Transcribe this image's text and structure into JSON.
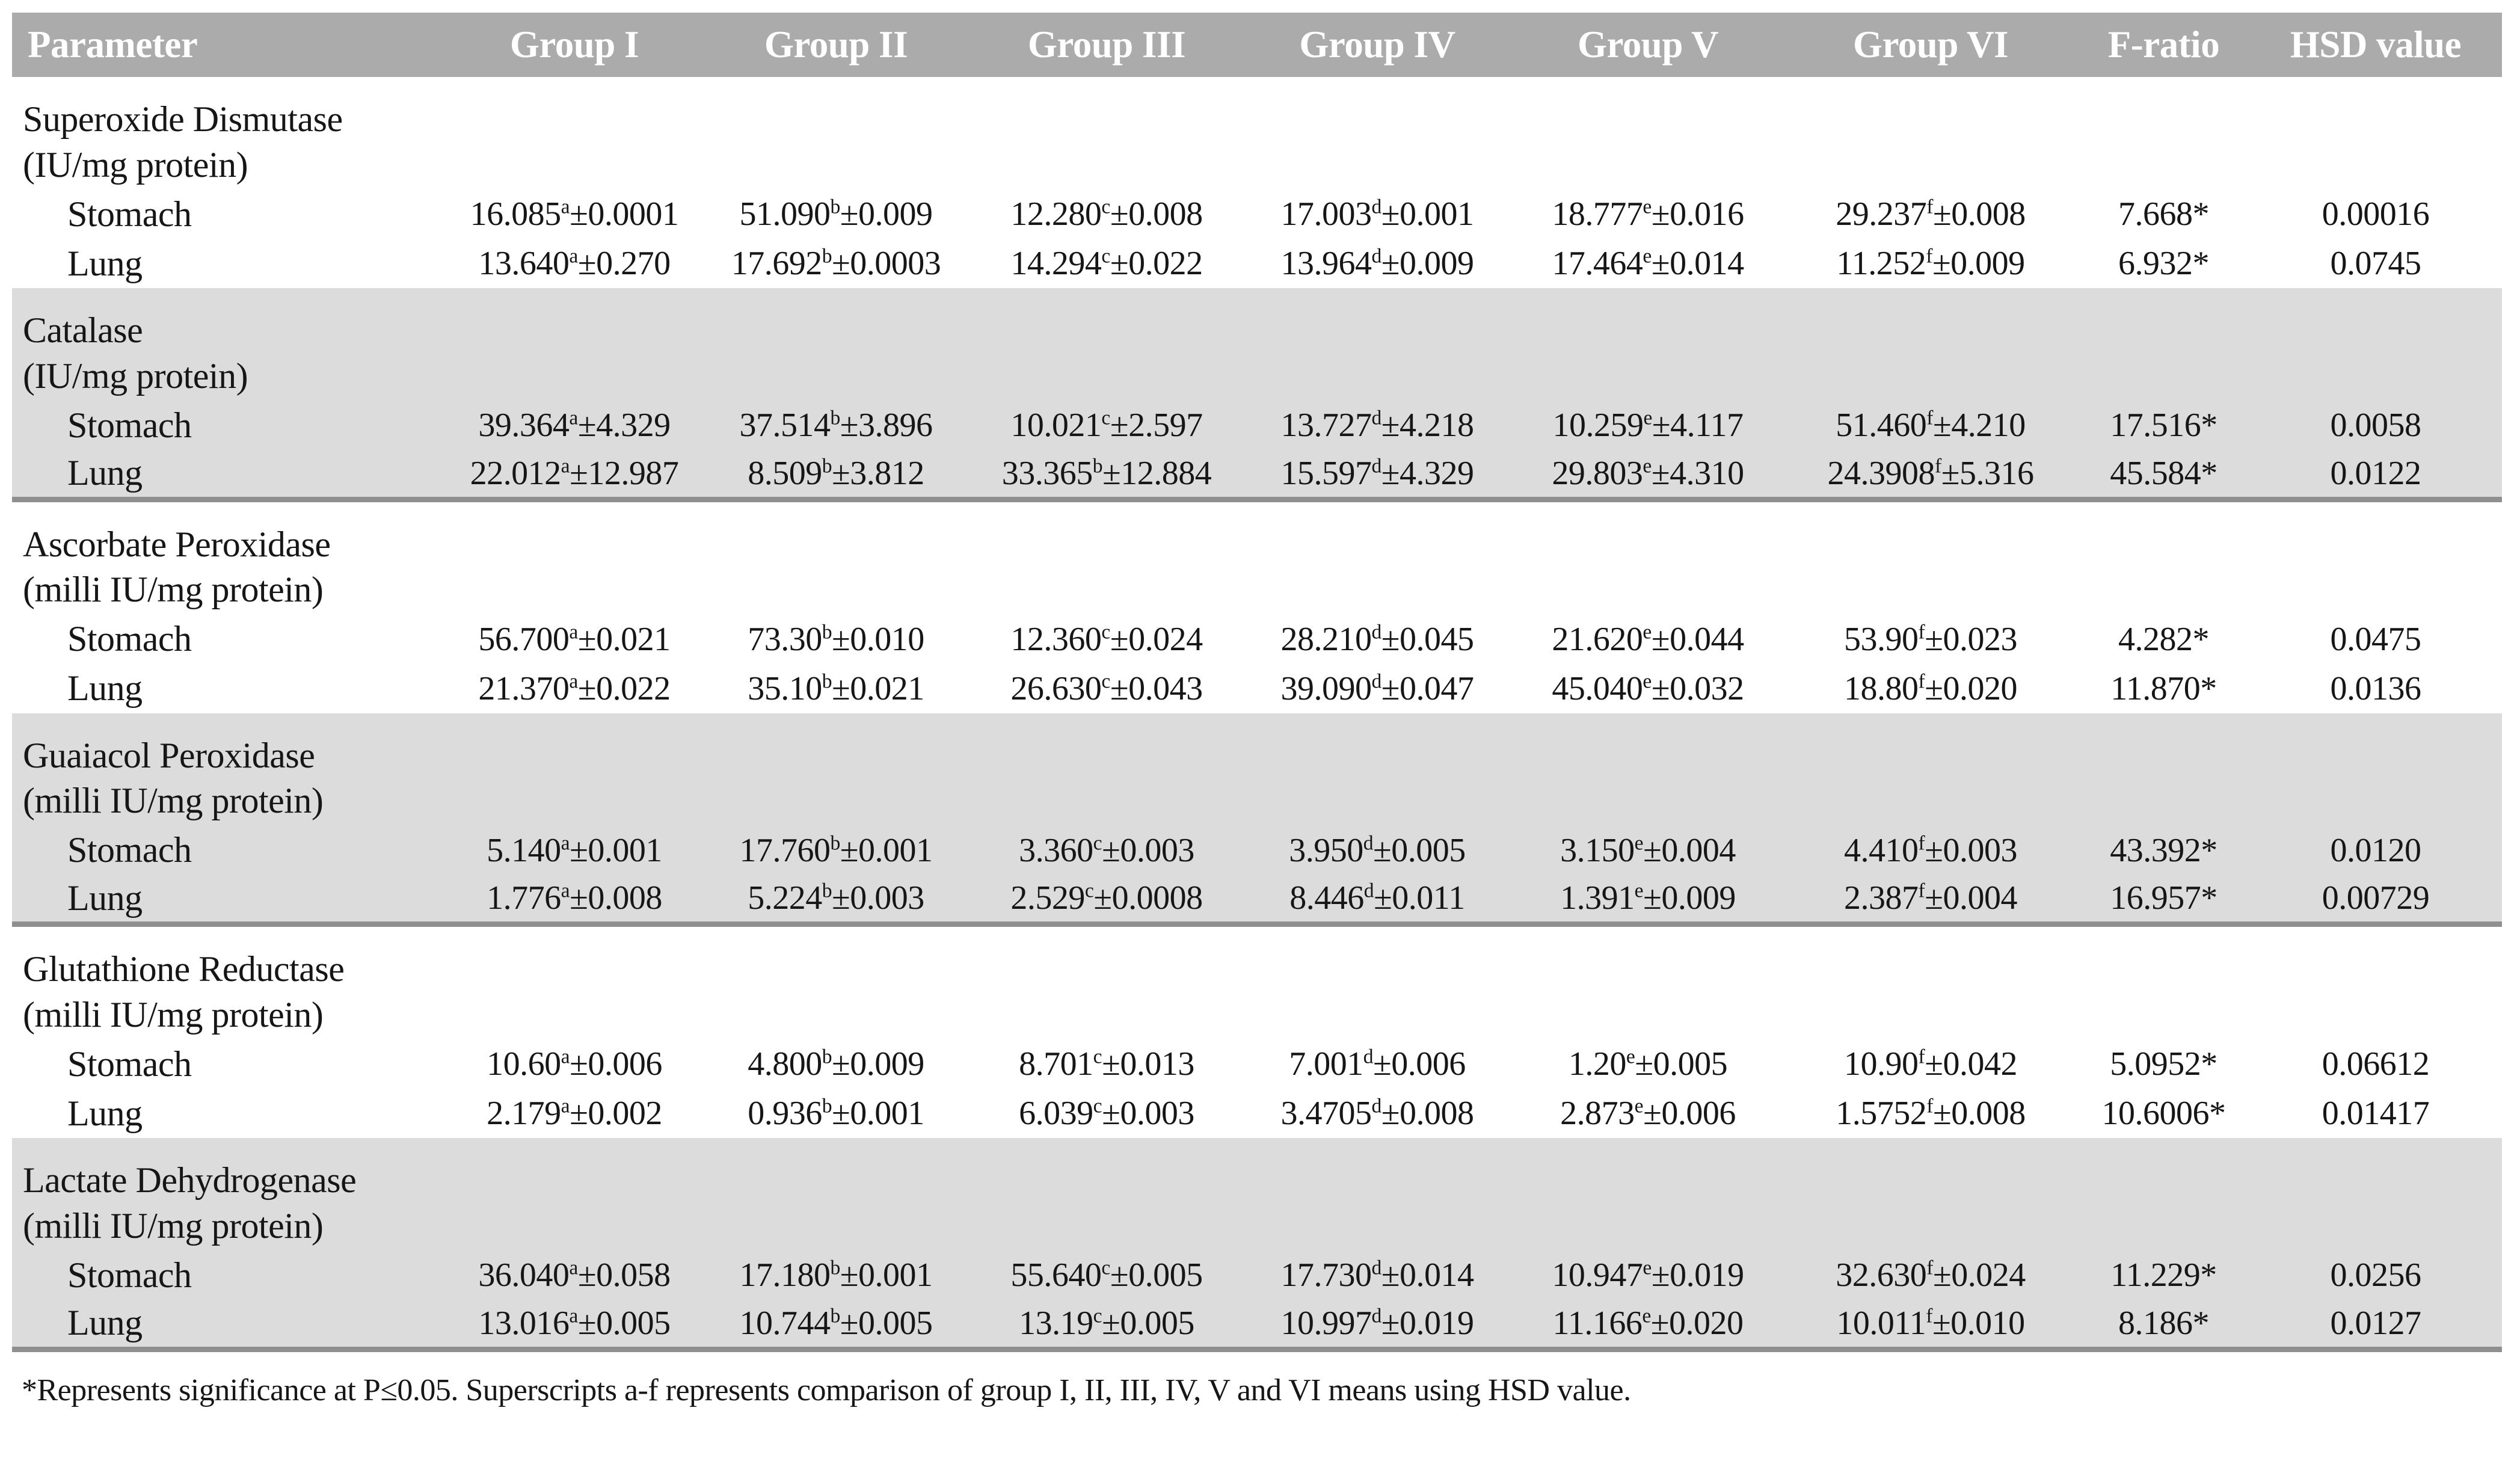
{
  "table": {
    "columns": [
      "Parameter",
      "Group I",
      "Group II",
      "Group III",
      "Group IV",
      "Group V",
      "Group VI",
      "F-ratio",
      "HSD value"
    ],
    "colors": {
      "header_bg": "#ABABAB",
      "header_text": "#FFFFFF",
      "shaded_section_bg": "#DCDCDC",
      "section_rule": "#8F8F8F",
      "body_text": "#161616"
    },
    "sections": [
      {
        "name": "Superoxide Dismutase",
        "unit": "(IU/mg protein)",
        "shaded": false,
        "rows": [
          {
            "tissue": "Stomach",
            "cells": [
              {
                "mean": "16.085",
                "sup": "a",
                "sd": "0.0001"
              },
              {
                "mean": "51.090",
                "sup": "b",
                "sd": "0.009"
              },
              {
                "mean": "12.280",
                "sup": "c",
                "sd": "0.008"
              },
              {
                "mean": "17.003",
                "sup": "d",
                "sd": "0.001"
              },
              {
                "mean": "18.777",
                "sup": "e",
                "sd": "0.016"
              },
              {
                "mean": "29.237",
                "sup": "f",
                "sd": "0.008"
              }
            ],
            "f_ratio": "7.668*",
            "hsd": "0.00016"
          },
          {
            "tissue": "Lung",
            "cells": [
              {
                "mean": "13.640",
                "sup": "a",
                "sd": "0.270"
              },
              {
                "mean": "17.692",
                "sup": "b",
                "sd": "0.0003"
              },
              {
                "mean": "14.294",
                "sup": "c",
                "sd": "0.022"
              },
              {
                "mean": "13.964",
                "sup": "d",
                "sd": "0.009"
              },
              {
                "mean": "17.464",
                "sup": "e",
                "sd": "0.014"
              },
              {
                "mean": "11.252",
                "sup": "f",
                "sd": "0.009"
              }
            ],
            "f_ratio": "6.932*",
            "hsd": "0.0745"
          }
        ]
      },
      {
        "name": "Catalase",
        "unit": "(IU/mg protein)",
        "shaded": true,
        "rows": [
          {
            "tissue": "Stomach",
            "cells": [
              {
                "mean": "39.364",
                "sup": "a",
                "sd": "4.329"
              },
              {
                "mean": "37.514",
                "sup": "b",
                "sd": "3.896"
              },
              {
                "mean": "10.021",
                "sup": "c",
                "sd": "2.597"
              },
              {
                "mean": "13.727",
                "sup": "d",
                "sd": "4.218"
              },
              {
                "mean": "10.259",
                "sup": "e",
                "sd": "4.117"
              },
              {
                "mean": "51.460",
                "sup": "f",
                "sd": "4.210"
              }
            ],
            "f_ratio": "17.516*",
            "hsd": "0.0058"
          },
          {
            "tissue": "Lung",
            "cells": [
              {
                "mean": "22.012",
                "sup": "a",
                "sd": "12.987"
              },
              {
                "mean": "8.509",
                "sup": "b",
                "sd": "3.812"
              },
              {
                "mean": "33.365",
                "sup": "b",
                "sd": "12.884"
              },
              {
                "mean": "15.597",
                "sup": "d",
                "sd": "4.329"
              },
              {
                "mean": "29.803",
                "sup": "e",
                "sd": "4.310"
              },
              {
                "mean": "24.3908",
                "sup": "f",
                "sd": "5.316"
              }
            ],
            "f_ratio": "45.584*",
            "hsd": "0.0122"
          }
        ]
      },
      {
        "name": "Ascorbate Peroxidase",
        "unit": "(milli IU/mg protein)",
        "shaded": false,
        "rows": [
          {
            "tissue": "Stomach",
            "cells": [
              {
                "mean": "56.700",
                "sup": "a",
                "sd": "0.021"
              },
              {
                "mean": "73.30",
                "sup": "b",
                "sd": "0.010"
              },
              {
                "mean": "12.360",
                "sup": "c",
                "sd": "0.024"
              },
              {
                "mean": "28.210",
                "sup": "d",
                "sd": "0.045"
              },
              {
                "mean": "21.620",
                "sup": "e",
                "sd": "0.044"
              },
              {
                "mean": "53.90",
                "sup": "f",
                "sd": "0.023"
              }
            ],
            "f_ratio": "4.282*",
            "hsd": "0.0475"
          },
          {
            "tissue": "Lung",
            "cells": [
              {
                "mean": "21.370",
                "sup": "a",
                "sd": "0.022"
              },
              {
                "mean": "35.10",
                "sup": "b",
                "sd": "0.021"
              },
              {
                "mean": "26.630",
                "sup": "c",
                "sd": "0.043"
              },
              {
                "mean": "39.090",
                "sup": "d",
                "sd": "0.047"
              },
              {
                "mean": "45.040",
                "sup": "e",
                "sd": "0.032"
              },
              {
                "mean": "18.80",
                "sup": "f",
                "sd": "0.020"
              }
            ],
            "f_ratio": "11.870*",
            "hsd": "0.0136"
          }
        ]
      },
      {
        "name": "Guaiacol Peroxidase",
        "unit": "(milli IU/mg protein)",
        "shaded": true,
        "rows": [
          {
            "tissue": "Stomach",
            "cells": [
              {
                "mean": "5.140",
                "sup": "a",
                "sd": "0.001"
              },
              {
                "mean": "17.760",
                "sup": "b",
                "sd": "0.001"
              },
              {
                "mean": "3.360",
                "sup": "c",
                "sd": "0.003"
              },
              {
                "mean": "3.950",
                "sup": "d",
                "sd": "0.005"
              },
              {
                "mean": "3.150",
                "sup": "e",
                "sd": "0.004"
              },
              {
                "mean": "4.410",
                "sup": "f",
                "sd": "0.003"
              }
            ],
            "f_ratio": "43.392*",
            "hsd": "0.0120"
          },
          {
            "tissue": "Lung",
            "cells": [
              {
                "mean": "1.776",
                "sup": "a",
                "sd": "0.008"
              },
              {
                "mean": "5.224",
                "sup": "b",
                "sd": "0.003"
              },
              {
                "mean": "2.529",
                "sup": "c",
                "sd": "0.0008"
              },
              {
                "mean": "8.446",
                "sup": "d",
                "sd": "0.011"
              },
              {
                "mean": "1.391",
                "sup": "e",
                "sd": "0.009"
              },
              {
                "mean": "2.387",
                "sup": "f",
                "sd": "0.004"
              }
            ],
            "f_ratio": "16.957*",
            "hsd": "0.00729"
          }
        ]
      },
      {
        "name": "Glutathione Reductase",
        "unit": "(milli IU/mg protein)",
        "shaded": false,
        "rows": [
          {
            "tissue": "Stomach",
            "cells": [
              {
                "mean": "10.60",
                "sup": "a",
                "sd": "0.006"
              },
              {
                "mean": "4.800",
                "sup": "b",
                "sd": "0.009"
              },
              {
                "mean": "8.701",
                "sup": "c",
                "sd": "0.013"
              },
              {
                "mean": "7.001",
                "sup": "d",
                "sd": "0.006"
              },
              {
                "mean": "1.20",
                "sup": "e",
                "sd": "0.005"
              },
              {
                "mean": "10.90",
                "sup": "f",
                "sd": "0.042"
              }
            ],
            "f_ratio": "5.0952*",
            "hsd": "0.06612"
          },
          {
            "tissue": "Lung",
            "cells": [
              {
                "mean": "2.179",
                "sup": "a",
                "sd": "0.002"
              },
              {
                "mean": "0.936",
                "sup": "b",
                "sd": "0.001"
              },
              {
                "mean": "6.039",
                "sup": "c",
                "sd": "0.003"
              },
              {
                "mean": "3.4705",
                "sup": "d",
                "sd": "0.008"
              },
              {
                "mean": "2.873",
                "sup": "e",
                "sd": "0.006"
              },
              {
                "mean": "1.5752",
                "sup": "f",
                "sd": "0.008"
              }
            ],
            "f_ratio": "10.6006*",
            "hsd": "0.01417"
          }
        ]
      },
      {
        "name": "Lactate Dehydrogenase",
        "unit": "(milli IU/mg protein)",
        "shaded": true,
        "rows": [
          {
            "tissue": "Stomach",
            "cells": [
              {
                "mean": "36.040",
                "sup": "a",
                "sd": "0.058"
              },
              {
                "mean": "17.180",
                "sup": "b",
                "sd": "0.001"
              },
              {
                "mean": "55.640",
                "sup": "c",
                "sd": "0.005"
              },
              {
                "mean": "17.730",
                "sup": "d",
                "sd": "0.014"
              },
              {
                "mean": "10.947",
                "sup": "e",
                "sd": "0.019"
              },
              {
                "mean": "32.630",
                "sup": "f",
                "sd": "0.024"
              }
            ],
            "f_ratio": "11.229*",
            "hsd": "0.0256"
          },
          {
            "tissue": "Lung",
            "cells": [
              {
                "mean": "13.016",
                "sup": "a",
                "sd": "0.005"
              },
              {
                "mean": "10.744",
                "sup": "b",
                "sd": "0.005"
              },
              {
                "mean": "13.19",
                "sup": "c",
                "sd": "0.005"
              },
              {
                "mean": "10.997",
                "sup": "d",
                "sd": "0.019"
              },
              {
                "mean": "11.166",
                "sup": "e",
                "sd": "0.020"
              },
              {
                "mean": "10.011",
                "sup": "f",
                "sd": "0.010"
              }
            ],
            "f_ratio": "8.186*",
            "hsd": "0.0127"
          }
        ]
      }
    ],
    "plus_minus": "±",
    "footnote": "*Represents significance at P≤0.05. Superscripts a-f represents comparison of group I, II, III, IV, V and VI means using HSD value."
  }
}
